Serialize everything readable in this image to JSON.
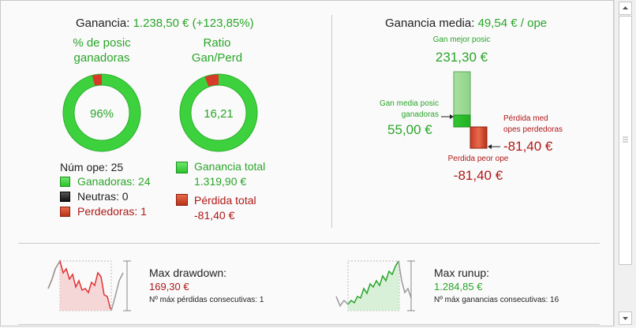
{
  "summary": {
    "ganancia_label": "Ganancia:",
    "ganancia_value": "1.238,50 € (+123,85%)"
  },
  "donut1": {
    "title_line1": "% de posic",
    "title_line2": "ganadoras",
    "center": "96%",
    "fraction": 0.96
  },
  "donut2": {
    "title_line1": "Ratio",
    "title_line2": "Gan/Perd",
    "center": "16,21",
    "fraction": 0.942
  },
  "stats": {
    "num_ope": "Núm ope: 25",
    "ganadoras": "Ganadoras: 24",
    "neutras": "Neutras: 0",
    "perdedoras": "Perdedoras: 1"
  },
  "totals": {
    "ganancia_total_label": "Ganancia total",
    "ganancia_total_value": "1.319,90 €",
    "perdida_total_label": "Pérdida total",
    "perdida_total_value": "-81,40 €"
  },
  "media": {
    "label": "Ganancia media:",
    "value": "49,54 € / ope",
    "gan_mejor_label": "Gan mejor posic",
    "gan_mejor_value": "231,30 €",
    "gan_media_label_1": "Gan media posic",
    "gan_media_label_2": "ganadoras",
    "gan_media_value": "55,00 €",
    "perdida_med_label_1": "Pérdida med",
    "perdida_med_label_2": "opes perdedoras",
    "perdida_med_value": "-81,40 €",
    "perdida_peor_label": "Perdida peor ope",
    "perdida_peor_value": "-81,40 €"
  },
  "drawdown": {
    "label": "Max drawdown:",
    "value": "169,30 €",
    "detail": "Nº máx pérdidas consecutivas: 1"
  },
  "runup": {
    "label": "Max runup:",
    "value": "1.284,85 €",
    "detail": "Nº máx ganancias consecutivas: 16"
  },
  "colors": {
    "green": "#2aa52a",
    "red": "#b01818",
    "ring_green": "#3ed13e",
    "ring_red": "#d83a2a"
  }
}
